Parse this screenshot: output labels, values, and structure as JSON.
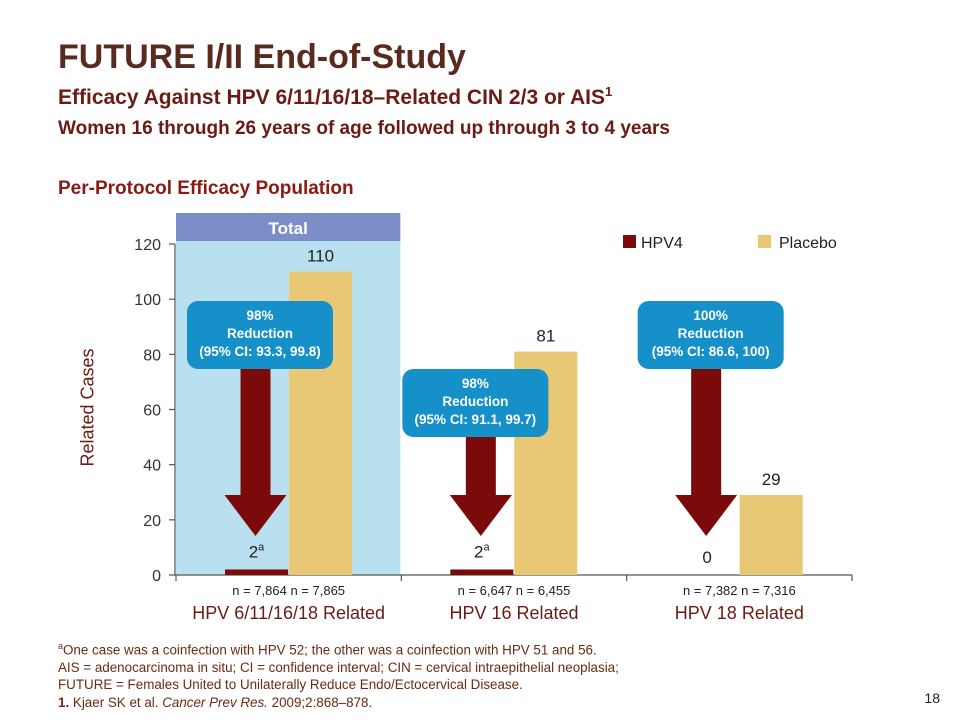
{
  "slide": {
    "title": "FUTURE I/II End-of-Study",
    "subtitle": "Efficacy Against HPV 6/11/16/18–Related CIN 2/3 or AIS",
    "subtitle_sup": "1",
    "subtitle2": "Women 16 through 26 years of age followed up through 3 to 4 years",
    "population": "Per-Protocol Efficacy Population",
    "page_number": "18"
  },
  "footnotes": {
    "line1_sup": "a",
    "line1": "One case was a coinfection with HPV 52; the other was a coinfection with HPV 51 and 56.",
    "line2": "AIS = adenocarcinoma in situ; CI = confidence interval; CIN = cervical intraepithelial neoplasia;",
    "line3": "FUTURE = Females United to Unilaterally Reduce Endo/Ectocervical Disease.",
    "ref_num": "1.",
    "ref_text": " Kjaer SK et al. ",
    "ref_journal": "Cancer Prev Res.",
    "ref_tail": " 2009;2:868–878."
  },
  "colors": {
    "hpv4": "#7b0a0a",
    "placebo": "#e8c874",
    "total_panel": "#b8e0ef",
    "total_header": "#7b8ec8",
    "callout": "#1590c8",
    "axis": "#555555",
    "text": "#6b1a14"
  },
  "chart_data": {
    "type": "bar",
    "title": "",
    "xlabel": "",
    "ylabel": "Related Cases",
    "ylim": [
      0,
      120
    ],
    "yticks": [
      0,
      20,
      40,
      60,
      80,
      100,
      120
    ],
    "categories": [
      "HPV 6/11/16/18 Related",
      "HPV 16 Related",
      "HPV 18 Related"
    ],
    "series": [
      {
        "name": "HPV4",
        "values": [
          2,
          2,
          0
        ],
        "labels": [
          "2",
          "2",
          "0"
        ],
        "label_sups": [
          "a",
          "a",
          ""
        ]
      },
      {
        "name": "Placebo",
        "values": [
          110,
          81,
          29
        ],
        "labels": [
          "110",
          "81",
          "29"
        ]
      }
    ],
    "n_labels": [
      "n = 7,864  n = 7,865",
      "n = 6,647  n = 6,455",
      "n = 7,382  n = 7,316"
    ],
    "total_header": "Total",
    "callouts": [
      {
        "lines": [
          "98%",
          "Reduction",
          "(95% CI: 93.3, 99.8)"
        ]
      },
      {
        "lines": [
          "98%",
          "Reduction",
          "(95% CI: 91.1, 99.7)"
        ]
      },
      {
        "lines": [
          "100%",
          "Reduction",
          "(95% CI: 86.6, 100)"
        ]
      }
    ],
    "legend_position": "top-right",
    "grid": false
  }
}
